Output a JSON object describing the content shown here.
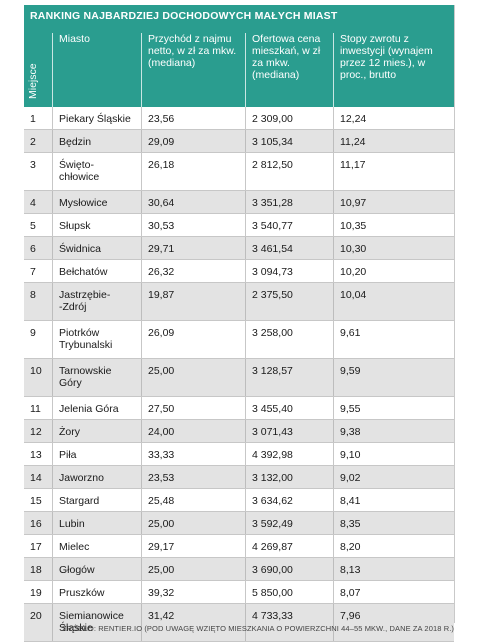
{
  "title": "RANKING NAJBARDZIEJ DOCHODOWYCH MAŁYCH MIAST",
  "headers": {
    "rank": "Miejsce",
    "city": "Miasto",
    "income": "Przychód z najmu netto, w zł za mkw. (mediana)",
    "price": "Ofertowa cena mieszkań, w zł za mkw. (mediana)",
    "roi": "Stopy zwrotu z inwestycji (wynajem przez 12 mies.), w proc., brutto"
  },
  "rows": [
    {
      "rank": "1",
      "city": "Piekary Śląskie",
      "income": "23,56",
      "price": "2 309,00",
      "roi": "12,24"
    },
    {
      "rank": "2",
      "city": "Będzin",
      "income": "29,09",
      "price": "3 105,34",
      "roi": "11,24"
    },
    {
      "rank": "3",
      "city": "Święto-\nchłowice",
      "income": "26,18",
      "price": "2 812,50",
      "roi": "11,17"
    },
    {
      "rank": "4",
      "city": "Mysłowice",
      "income": "30,64",
      "price": "3 351,28",
      "roi": "10,97"
    },
    {
      "rank": "5",
      "city": "Słupsk",
      "income": "30,53",
      "price": "3 540,77",
      "roi": "10,35"
    },
    {
      "rank": "6",
      "city": "Świdnica",
      "income": "29,71",
      "price": "3 461,54",
      "roi": "10,30"
    },
    {
      "rank": "7",
      "city": "Bełchatów",
      "income": "26,32",
      "price": "3 094,73",
      "roi": "10,20"
    },
    {
      "rank": "8",
      "city": "Jastrzębie-\n-Zdrój",
      "income": "19,87",
      "price": "2 375,50",
      "roi": "10,04"
    },
    {
      "rank": "9",
      "city": "Piotrków\nTrybunalski",
      "income": "26,09",
      "price": "3 258,00",
      "roi": "9,61"
    },
    {
      "rank": "10",
      "city": "Tarnowskie\nGóry",
      "income": "25,00",
      "price": "3 128,57",
      "roi": "9,59"
    },
    {
      "rank": "11",
      "city": "Jelenia Góra",
      "income": "27,50",
      "price": "3 455,40",
      "roi": "9,55"
    },
    {
      "rank": "12",
      "city": "Żory",
      "income": "24,00",
      "price": "3 071,43",
      "roi": "9,38"
    },
    {
      "rank": "13",
      "city": "Piła",
      "income": "33,33",
      "price": "4 392,98",
      "roi": "9,10"
    },
    {
      "rank": "14",
      "city": "Jaworzno",
      "income": "23,53",
      "price": "3 132,00",
      "roi": "9,02"
    },
    {
      "rank": "15",
      "city": "Stargard",
      "income": "25,48",
      "price": "3 634,62",
      "roi": "8,41"
    },
    {
      "rank": "16",
      "city": "Lubin",
      "income": "25,00",
      "price": "3 592,49",
      "roi": "8,35"
    },
    {
      "rank": "17",
      "city": "Mielec",
      "income": "29,17",
      "price": "4 269,87",
      "roi": "8,20"
    },
    {
      "rank": "18",
      "city": "Głogów",
      "income": "25,00",
      "price": "3 690,00",
      "roi": "8,13"
    },
    {
      "rank": "19",
      "city": "Pruszków",
      "income": "39,32",
      "price": "5 850,00",
      "roi": "8,07"
    },
    {
      "rank": "20",
      "city": "Siemianowice\nŚląskie",
      "income": "31,42",
      "price": "4 733,33",
      "roi": "7,96"
    }
  ],
  "source": "ŹRÓDŁO: RENTIER.IO (POD UWAGĘ WZIĘTO MIESZKANIA O POWIERZCHNI 44–55 MKW., DANE ZA 2018 R.)",
  "colors": {
    "header_bg": "#2a9d8f",
    "row_alt": "#e3e3e3"
  }
}
